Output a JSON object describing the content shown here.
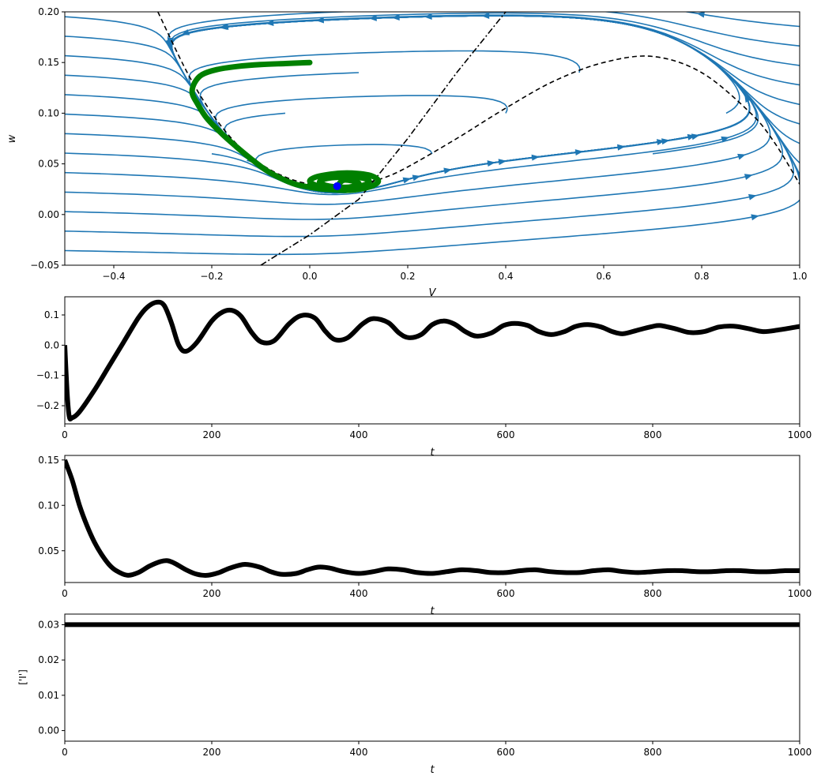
{
  "colors": {
    "stream": "#1f77b4",
    "trajectory": "#008000",
    "fixed_point": "#0000ff",
    "series": "#000000",
    "nullcline": "#000000"
  },
  "chart_data": [
    {
      "type": "line",
      "kind": "phase-plane",
      "xlabel": "V",
      "ylabel": "w",
      "xlim": [
        -0.5,
        1.0
      ],
      "ylim": [
        -0.05,
        0.2
      ],
      "xticks": [
        "−0.4",
        "−0.2",
        "0.0",
        "0.2",
        "0.4",
        "0.6",
        "0.8",
        "1.0"
      ],
      "yticks": [
        "−0.05",
        "0.00",
        "0.05",
        "0.10",
        "0.15",
        "0.20"
      ],
      "fixed_point": {
        "x": 0.056,
        "y": 0.028
      },
      "v_nullcline": [
        [
          -0.31,
          0.2
        ],
        [
          -0.25,
          0.14
        ],
        [
          -0.2,
          0.1
        ],
        [
          -0.15,
          0.07
        ],
        [
          -0.1,
          0.05
        ],
        [
          -0.05,
          0.037
        ],
        [
          0.0,
          0.03
        ],
        [
          0.05,
          0.028
        ],
        [
          0.1,
          0.03
        ],
        [
          0.15,
          0.036
        ],
        [
          0.2,
          0.047
        ],
        [
          0.3,
          0.075
        ],
        [
          0.4,
          0.105
        ],
        [
          0.5,
          0.132
        ],
        [
          0.6,
          0.15
        ],
        [
          0.7,
          0.156
        ],
        [
          0.8,
          0.14
        ],
        [
          0.9,
          0.1
        ],
        [
          0.95,
          0.07
        ],
        [
          1.0,
          0.03
        ]
      ],
      "w_nullcline": [
        [
          -0.1,
          -0.05
        ],
        [
          0.0,
          -0.02
        ],
        [
          0.1,
          0.015
        ],
        [
          0.2,
          0.075
        ],
        [
          0.3,
          0.14
        ],
        [
          0.4,
          0.2
        ]
      ],
      "trajectory": [
        [
          0.0,
          0.15
        ],
        [
          -0.05,
          0.149
        ],
        [
          -0.1,
          0.148
        ],
        [
          -0.15,
          0.146
        ],
        [
          -0.19,
          0.143
        ],
        [
          -0.22,
          0.138
        ],
        [
          -0.235,
          0.13
        ],
        [
          -0.24,
          0.12
        ],
        [
          -0.23,
          0.11
        ],
        [
          -0.21,
          0.095
        ],
        [
          -0.18,
          0.08
        ],
        [
          -0.15,
          0.067
        ],
        [
          -0.12,
          0.055
        ],
        [
          -0.09,
          0.044
        ],
        [
          -0.06,
          0.036
        ],
        [
          -0.03,
          0.03
        ],
        [
          0.0,
          0.027
        ],
        [
          0.03,
          0.025
        ],
        [
          0.08,
          0.024
        ],
        [
          0.12,
          0.027
        ],
        [
          0.14,
          0.033
        ],
        [
          0.12,
          0.039
        ],
        [
          0.07,
          0.041
        ],
        [
          0.02,
          0.038
        ],
        [
          0.0,
          0.033
        ],
        [
          0.02,
          0.028
        ],
        [
          0.07,
          0.026
        ],
        [
          0.11,
          0.029
        ],
        [
          0.12,
          0.034
        ],
        [
          0.09,
          0.037
        ],
        [
          0.04,
          0.036
        ],
        [
          0.02,
          0.032
        ],
        [
          0.04,
          0.028
        ],
        [
          0.08,
          0.027
        ],
        [
          0.1,
          0.031
        ],
        [
          0.07,
          0.034
        ],
        [
          0.056,
          0.028
        ]
      ]
    },
    {
      "type": "line",
      "xlabel": "t",
      "ylabel": "",
      "xlim": [
        0,
        1000
      ],
      "ylim": [
        -0.26,
        0.16
      ],
      "xticks": [
        "0",
        "200",
        "400",
        "600",
        "800",
        "1000"
      ],
      "yticks": [
        "−0.2",
        "−0.1",
        "0.0",
        "0.1"
      ],
      "x": [
        0,
        3,
        6,
        10,
        20,
        40,
        60,
        80,
        100,
        112,
        125,
        135,
        145,
        155,
        165,
        180,
        200,
        215,
        228,
        240,
        255,
        268,
        285,
        305,
        322,
        340,
        355,
        368,
        385,
        405,
        420,
        440,
        455,
        468,
        485,
        500,
        515,
        530,
        545,
        560,
        580,
        597,
        612,
        630,
        645,
        662,
        680,
        695,
        712,
        730,
        745,
        760,
        780,
        800,
        810,
        830,
        850,
        870,
        890,
        910,
        930,
        950,
        970,
        1000
      ],
      "values": [
        0.0,
        -0.15,
        -0.235,
        -0.24,
        -0.22,
        -0.15,
        -0.07,
        0.01,
        0.09,
        0.125,
        0.142,
        0.132,
        0.075,
        0.0,
        -0.02,
        0.01,
        0.08,
        0.11,
        0.115,
        0.095,
        0.04,
        0.01,
        0.015,
        0.07,
        0.098,
        0.09,
        0.045,
        0.018,
        0.025,
        0.07,
        0.088,
        0.075,
        0.04,
        0.025,
        0.035,
        0.068,
        0.08,
        0.07,
        0.045,
        0.03,
        0.04,
        0.065,
        0.072,
        0.065,
        0.045,
        0.035,
        0.045,
        0.062,
        0.068,
        0.06,
        0.045,
        0.038,
        0.05,
        0.062,
        0.065,
        0.055,
        0.042,
        0.045,
        0.06,
        0.063,
        0.055,
        0.045,
        0.05,
        0.062
      ]
    },
    {
      "type": "line",
      "xlabel": "t",
      "ylabel": "",
      "xlim": [
        0,
        1000
      ],
      "ylim": [
        0.015,
        0.155
      ],
      "xticks": [
        "0",
        "200",
        "400",
        "600",
        "800",
        "1000"
      ],
      "yticks": [
        "0.05",
        "0.10",
        "0.15"
      ],
      "x": [
        0,
        10,
        20,
        30,
        40,
        50,
        60,
        70,
        85,
        100,
        115,
        130,
        140,
        150,
        165,
        180,
        195,
        210,
        225,
        245,
        265,
        280,
        295,
        315,
        330,
        345,
        360,
        380,
        400,
        420,
        440,
        460,
        480,
        500,
        520,
        540,
        560,
        580,
        600,
        620,
        640,
        660,
        680,
        700,
        720,
        740,
        760,
        780,
        800,
        820,
        840,
        860,
        880,
        900,
        920,
        940,
        960,
        980,
        1000
      ],
      "values": [
        0.15,
        0.128,
        0.1,
        0.078,
        0.06,
        0.046,
        0.035,
        0.028,
        0.023,
        0.026,
        0.033,
        0.038,
        0.039,
        0.036,
        0.029,
        0.024,
        0.023,
        0.026,
        0.031,
        0.035,
        0.032,
        0.027,
        0.024,
        0.025,
        0.029,
        0.032,
        0.031,
        0.027,
        0.025,
        0.027,
        0.03,
        0.029,
        0.026,
        0.025,
        0.027,
        0.029,
        0.028,
        0.026,
        0.026,
        0.028,
        0.029,
        0.027,
        0.026,
        0.026,
        0.028,
        0.029,
        0.027,
        0.026,
        0.027,
        0.028,
        0.028,
        0.027,
        0.027,
        0.028,
        0.028,
        0.027,
        0.027,
        0.028,
        0.028
      ]
    },
    {
      "type": "line",
      "xlabel": "t",
      "ylabel": "['I']",
      "xlim": [
        0,
        1000
      ],
      "ylim": [
        -0.003,
        0.033
      ],
      "xticks": [
        "0",
        "200",
        "400",
        "600",
        "800",
        "1000"
      ],
      "yticks": [
        "0.00",
        "0.01",
        "0.02",
        "0.03"
      ],
      "x": [
        0,
        1000
      ],
      "values": [
        0.03,
        0.03
      ]
    }
  ]
}
